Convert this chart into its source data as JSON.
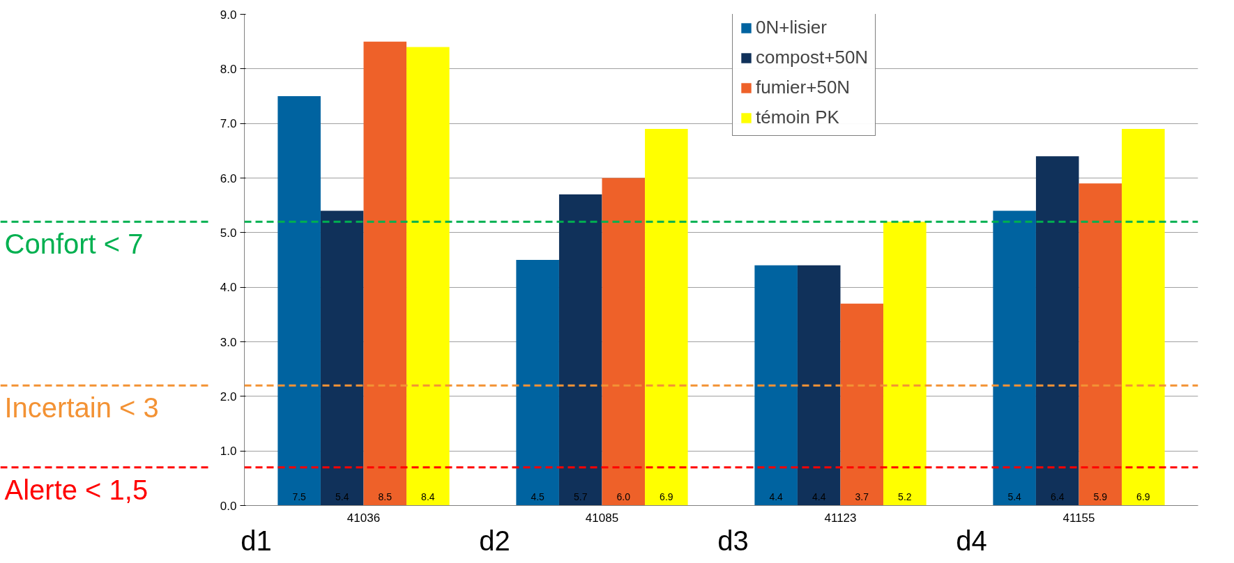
{
  "chart_data": {
    "type": "bar",
    "categories": [
      "41036",
      "41085",
      "41123",
      "41155"
    ],
    "series": [
      {
        "name": "0N+lisier",
        "color": "#0063a0",
        "values": [
          7.5,
          4.5,
          4.4,
          5.4
        ],
        "value_labels": [
          "7.5",
          "4.5",
          "4.4",
          "5.4"
        ]
      },
      {
        "name": "compost+50N",
        "color": "#10315a",
        "values": [
          5.4,
          5.7,
          4.4,
          6.4
        ],
        "value_labels": [
          "5.4",
          "5.7",
          "4.4",
          "6.4"
        ]
      },
      {
        "name": "fumier+50N",
        "color": "#ee6129",
        "values": [
          8.5,
          6.0,
          3.7,
          5.9
        ],
        "value_labels": [
          "8.5",
          "6.0",
          "3.7",
          "5.9"
        ]
      },
      {
        "name": "témoin PK",
        "color": "#ffff00",
        "values": [
          8.4,
          6.9,
          5.2,
          6.9
        ],
        "value_labels": [
          "8.4",
          "6.9",
          "5.2",
          "6.9"
        ]
      }
    ],
    "ylim": [
      0,
      9
    ],
    "yticks": [
      {
        "value": 0,
        "label": "0.0"
      },
      {
        "value": 1,
        "label": "1.0"
      },
      {
        "value": 2,
        "label": "2.0"
      },
      {
        "value": 3,
        "label": "3.0"
      },
      {
        "value": 4,
        "label": "4.0"
      },
      {
        "value": 5,
        "label": "5.0"
      },
      {
        "value": 6,
        "label": "6.0"
      },
      {
        "value": 7,
        "label": "7.0"
      },
      {
        "value": 8,
        "label": "8.0"
      },
      {
        "value": 9,
        "label": "9.0"
      }
    ],
    "grid": "y",
    "legend": "top right",
    "ref_lines": [
      {
        "axis": "y",
        "value": 5.2,
        "label": "Confort  < 7",
        "color": "#00b050",
        "line_style": "dashed"
      },
      {
        "axis": "y",
        "value": 2.2,
        "label": "Incertain  < 3",
        "color": "#f39234",
        "line_style": "dashed"
      },
      {
        "axis": "y",
        "value": 0.7,
        "label": "Alerte  < 1,5",
        "color": "#ff0000",
        "line_style": "dashed"
      }
    ],
    "annotations": [
      "d1",
      "d2",
      "d3",
      "d4"
    ]
  }
}
